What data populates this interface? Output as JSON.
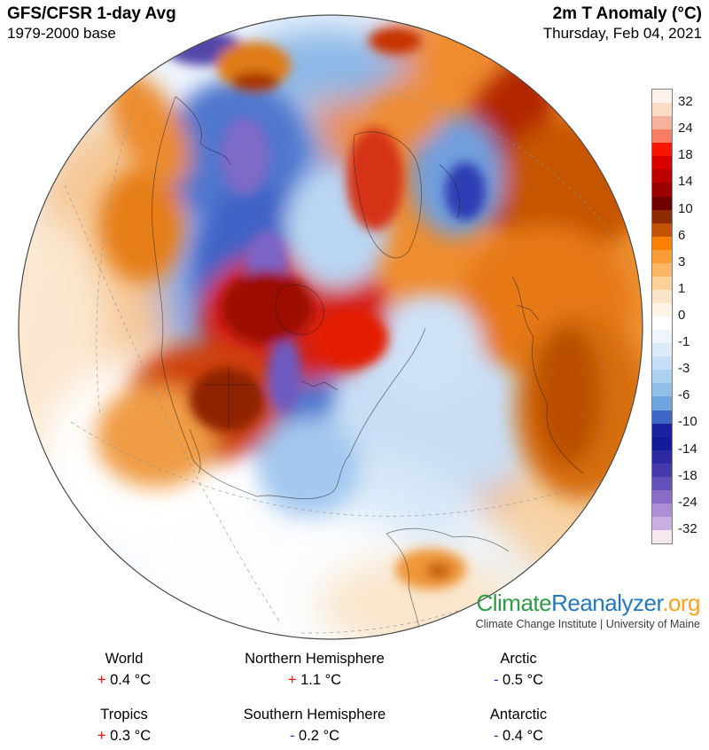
{
  "header": {
    "model": "GFS/CFSR 1-day Avg",
    "base": "1979-2000 base",
    "variable": "2m T Anomaly (°C)",
    "date": "Thursday, Feb 04, 2021"
  },
  "colorbar": {
    "labels": [
      "32",
      "24",
      "18",
      "14",
      "10",
      "6",
      "3",
      "1",
      "0",
      "-1",
      "-3",
      "-6",
      "-10",
      "-14",
      "-18",
      "-24",
      "-32"
    ],
    "scale_values": [
      32,
      24,
      18,
      14,
      10,
      6,
      3,
      1,
      0,
      -1,
      -3,
      -6,
      -10,
      -14,
      -18,
      -24,
      -32
    ],
    "units": "°C",
    "segments": [
      "#fdf2ec",
      "#f8dcc6",
      "#f5b19b",
      "#f97d64",
      "#f81400",
      "#da0000",
      "#bc0000",
      "#9c0000",
      "#700000",
      "#8f2a00",
      "#c35304",
      "#fa8005",
      "#fa9d37",
      "#fbb764",
      "#fcd098",
      "#fae5c9",
      "#fdf4e6",
      "#ffffff",
      "#eef5fc",
      "#dcebf9",
      "#c6def6",
      "#abd0f0",
      "#90c0e9",
      "#6ea7e0",
      "#3f67c8",
      "#1b229f",
      "#141b99",
      "#2d28a4",
      "#453aad",
      "#6450ba",
      "#8a6cc8",
      "#af8ed8",
      "#cbaee2",
      "#f5e9ef"
    ]
  },
  "branding": {
    "logo_climate": "Climate",
    "logo_reanalyzer": "Reanalyzer",
    "logo_org": ".org",
    "logo_colors": {
      "climate": "#2e9b45",
      "reanalyzer": "#2678bd",
      "org": "#f9a11d"
    },
    "tagline": "Climate Change Institute | University of Maine"
  },
  "stats": [
    {
      "label": "World",
      "sign": "+",
      "value": "0.4 °C"
    },
    {
      "label": "Northern Hemisphere",
      "sign": "+",
      "value": "1.1 °C"
    },
    {
      "label": "Arctic",
      "sign": "-",
      "value": "0.5 °C"
    },
    {
      "label": "Tropics",
      "sign": "+",
      "value": "0.3 °C"
    },
    {
      "label": "Southern Hemisphere",
      "sign": "-",
      "value": "0.2 °C"
    },
    {
      "label": "Antarctic",
      "sign": "-",
      "value": "0.4 °C"
    }
  ],
  "stat_sign_colors": {
    "positive": "#e81010",
    "negative": "#2e2ec9"
  }
}
